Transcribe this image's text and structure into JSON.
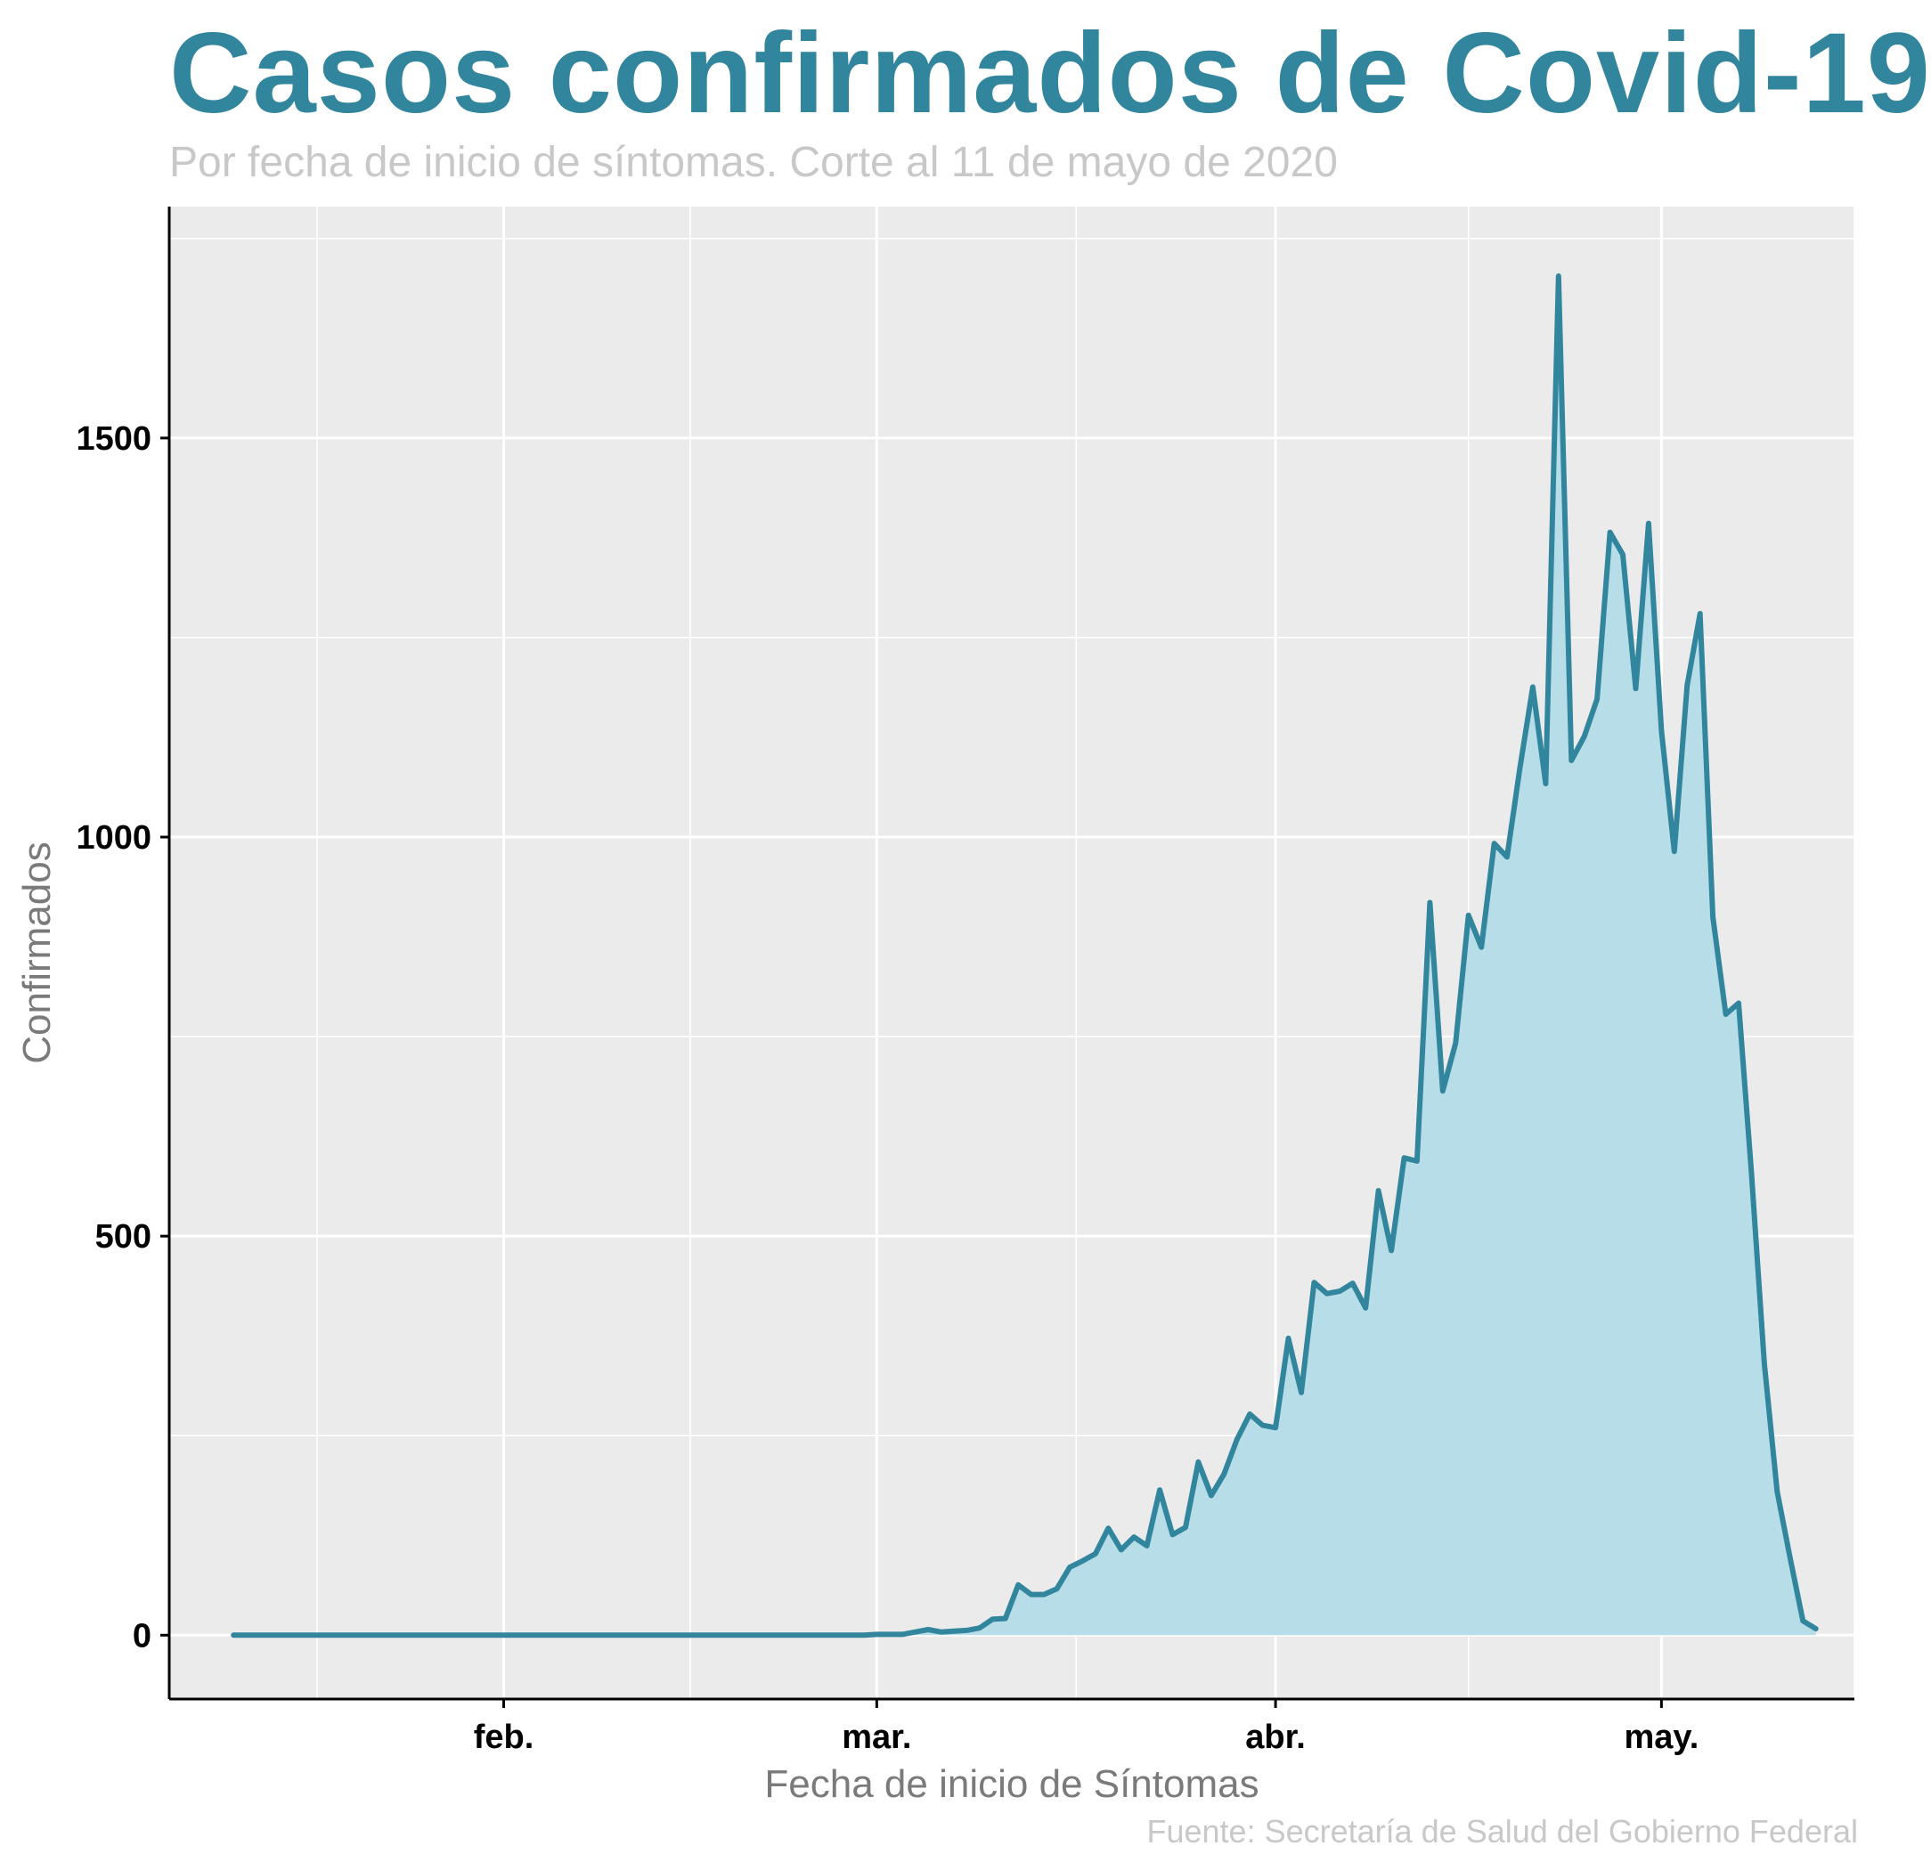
{
  "header": {
    "title": "Casos confirmados de Covid-19",
    "subtitle": "Por fecha de inicio de síntomas. Corte al 11 de mayo de 2020",
    "caption": "Fuente: Secretaría de Salud del Gobierno Federal"
  },
  "colors": {
    "accent": "#31859c",
    "fill": "#b7dde8",
    "panel": "#ebebeb",
    "grid": "#ffffff",
    "muted_text": "#c8c8c8",
    "axis_title": "#7a7a7a"
  },
  "chart_data": {
    "type": "area",
    "xlabel": "Fecha de inicio de Síntomas",
    "ylabel": "Confirmados",
    "x_start": "2020-01-11",
    "x_end": "2020-05-11",
    "xlim": [
      "2020-01-06",
      "2020-05-16"
    ],
    "ylim": [
      -80,
      1790
    ],
    "y_ticks": [
      0,
      500,
      1000,
      1500
    ],
    "x_ticks": [
      {
        "date": "2020-02-01",
        "label": "feb."
      },
      {
        "date": "2020-03-01",
        "label": "mar."
      },
      {
        "date": "2020-04-01",
        "label": "abr."
      },
      {
        "date": "2020-05-01",
        "label": "may."
      }
    ],
    "grid": true,
    "values": [
      0,
      0,
      0,
      0,
      0,
      0,
      0,
      0,
      0,
      0,
      0,
      0,
      0,
      0,
      0,
      0,
      0,
      0,
      0,
      0,
      0,
      0,
      0,
      0,
      0,
      0,
      0,
      0,
      0,
      0,
      0,
      0,
      0,
      0,
      0,
      0,
      0,
      0,
      0,
      0,
      0,
      0,
      0,
      0,
      0,
      0,
      0,
      0,
      0,
      0,
      1,
      1,
      1,
      4,
      7,
      4,
      5,
      6,
      9,
      20,
      21,
      63,
      51,
      51,
      58,
      85,
      93,
      102,
      134,
      107,
      123,
      112,
      182,
      126,
      135,
      217,
      175,
      202,
      245,
      277,
      263,
      260,
      372,
      304,
      442,
      428,
      431,
      441,
      410,
      557,
      482,
      598,
      594,
      918,
      682,
      742,
      902,
      862,
      992,
      975,
      1087,
      1188,
      1067,
      1703,
      1096,
      1126,
      1173,
      1382,
      1354,
      1186,
      1393,
      1133,
      982,
      1190,
      1280,
      900,
      778,
      792,
      578,
      340,
      180,
      97,
      18,
      8
    ]
  }
}
